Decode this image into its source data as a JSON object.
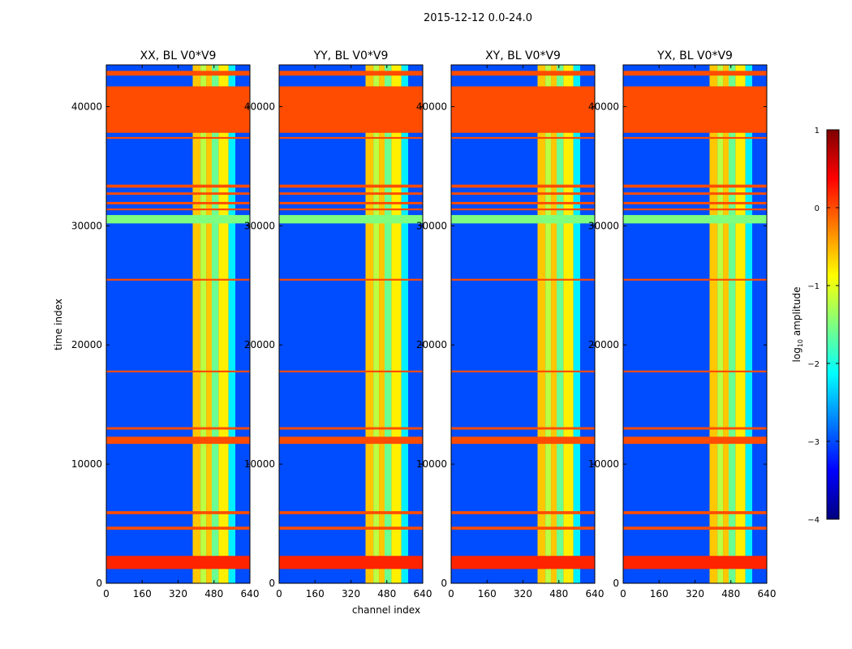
{
  "figure": {
    "suptitle": "2015-12-12 0.0-24.0",
    "xlabel": "channel index",
    "ylabel": "time index"
  },
  "colorbar": {
    "label": "log",
    "label_subscript": "10",
    "label_suffix": " amplitude",
    "ticks": [
      {
        "value": 1,
        "label": "1"
      },
      {
        "value": 0,
        "label": "0"
      },
      {
        "value": -1,
        "label": "−1"
      },
      {
        "value": -2,
        "label": "−2"
      },
      {
        "value": -3,
        "label": "−3"
      },
      {
        "value": -4,
        "label": "−4"
      }
    ],
    "range": [
      -4,
      1
    ],
    "colormap": [
      "#00007f",
      "#0000ff",
      "#007fff",
      "#00ffff",
      "#7fff7f",
      "#ffff00",
      "#ff7f00",
      "#ff0000",
      "#7f0000"
    ]
  },
  "chart_data": {
    "type": "heatmap",
    "x_ticks": [
      0,
      160,
      320,
      480,
      640
    ],
    "y_ticks": [
      0,
      10000,
      20000,
      30000,
      40000
    ],
    "xlim": [
      0,
      640
    ],
    "ylim": [
      0,
      43500
    ],
    "value_units": "log10 amplitude",
    "panels": [
      {
        "title": "XX, BL V0*V9",
        "background_level": -3.0
      },
      {
        "title": "YY, BL V0*V9",
        "background_level": -3.0
      },
      {
        "title": "XY, BL V0*V9",
        "background_level": -3.0
      },
      {
        "title": "YX, BL V0*V9",
        "background_level": -3.0
      }
    ],
    "flagged_rows": [
      {
        "y0": 37800,
        "y1": 41700,
        "value": 0.0
      },
      {
        "y0": 42600,
        "y1": 43000,
        "value": 0.0
      },
      {
        "y0": 30200,
        "y1": 30900,
        "value": -1.5
      },
      {
        "y0": 11700,
        "y1": 12300,
        "value": 0.0
      },
      {
        "y0": 33200,
        "y1": 33450,
        "value": 0.0
      },
      {
        "y0": 32600,
        "y1": 32800,
        "value": 0.0
      },
      {
        "y0": 31800,
        "y1": 32000,
        "value": 0.0
      },
      {
        "y0": 31300,
        "y1": 31450,
        "value": 0.0
      },
      {
        "y0": 5800,
        "y1": 6050,
        "value": 0.0
      },
      {
        "y0": 4500,
        "y1": 4750,
        "value": 0.0
      },
      {
        "y0": 12900,
        "y1": 13100,
        "value": 0.0
      },
      {
        "y0": 17700,
        "y1": 17850,
        "value": 0.0
      },
      {
        "y0": 25400,
        "y1": 25550,
        "value": 0.0
      },
      {
        "y0": 37300,
        "y1": 37450,
        "value": 0.0
      }
    ],
    "rfi_bands": [
      {
        "x0": 385,
        "x1": 420,
        "value": -0.6
      },
      {
        "x0": 420,
        "x1": 445,
        "value": -1.2
      },
      {
        "x0": 445,
        "x1": 470,
        "value": -0.6
      },
      {
        "x0": 470,
        "x1": 500,
        "value": -1.6
      },
      {
        "x0": 500,
        "x1": 545,
        "value": -0.8
      },
      {
        "x0": 545,
        "x1": 575,
        "value": -2.2
      }
    ],
    "hot_rows": [
      {
        "y0": 1200,
        "y1": 2300,
        "value": 0.2
      }
    ]
  }
}
